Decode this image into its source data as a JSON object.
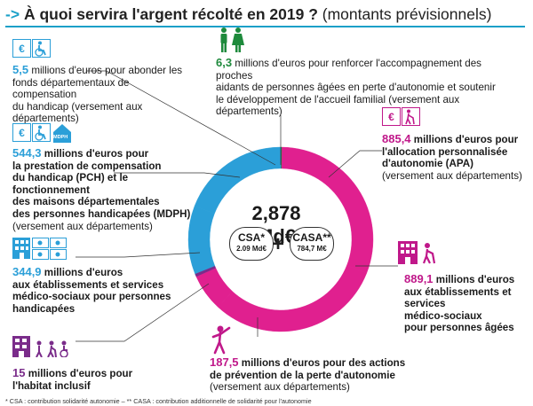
{
  "title": {
    "arrow": "->",
    "main": "À quoi servira l'argent récolté en 2019 ?",
    "sub": "(montants prévisionnels)"
  },
  "center": {
    "total": "2,878 Md€",
    "csa_label": "CSA*",
    "csa_value": "2.09 Md€",
    "plus": "+",
    "casa_label": "CASA**",
    "casa_value": "784,7 M€"
  },
  "items": {
    "fonds": {
      "value": "5,5",
      "text1": "millions d'euros pour abonder les",
      "text2": "fonds départementaux de compensation",
      "text3": "du handicap",
      "note": "(versement aux départements)"
    },
    "proches": {
      "value": "6,3",
      "text1": "millions d'euros pour renforcer l'accompagnement des proches",
      "text2": "aidants de personnes âgées en perte d'autonomie et soutenir",
      "text3": "le développement de l'accueil familial",
      "note": "(versement aux départements)"
    },
    "pch": {
      "value": "544,3",
      "text1": "millions d'euros pour",
      "text2": "la prestation de compensation",
      "text3": "du handicap (PCH) et le fonctionnement",
      "text4": "des maisons départementales",
      "text5": "des personnes handicapées (MDPH)",
      "note": "(versement aux départements)",
      "badge": "MDPH"
    },
    "apa": {
      "value": "885,4",
      "text1": "millions d'euros pour",
      "text2": "l'allocation personnalisée",
      "text3": "d'autonomie (APA)",
      "note": "(versement aux départements)"
    },
    "handicap_etab": {
      "value": "344,9",
      "text1": "millions d'euros",
      "text2": "aux établissements et services",
      "text3": "médico-sociaux pour personnes",
      "text4": "handicapées"
    },
    "agees_etab": {
      "value": "889,1",
      "text1": "millions d'euros",
      "text2": "aux établissements et services",
      "text3": "médico-sociaux",
      "text4": "pour personnes âgées"
    },
    "habitat": {
      "value": "15",
      "text1": "millions d'euros pour",
      "text2": "l'habitat inclusif"
    },
    "prevention": {
      "value": "187,5",
      "text1": "millions d'euros pour des actions",
      "text2": "de prévention de la perte d'autonomie",
      "note": "(versement aux départements)"
    }
  },
  "footnote": "* CSA : contribution solidarité autonomie – ** CASA : contribution additionnelle de solidarité pour l'autonomie",
  "colors": {
    "blue": "#2b9fd8",
    "magenta": "#e0208f",
    "purple": "#7a2c8a",
    "green": "#1e8a3c"
  },
  "chart_data": {
    "type": "pie",
    "title": "À quoi servira l'argent récolté en 2019 ? (montants prévisionnels)",
    "unit": "millions d'euros",
    "total_label": "2,878 Md€",
    "slices": [
      {
        "name": "Accompagnement des proches aidants et accueil familial",
        "value": 6.3,
        "color": "#1e8a3c"
      },
      {
        "name": "APA",
        "value": 885.4,
        "color": "#e0208f"
      },
      {
        "name": "Établissements et services pour personnes âgées",
        "value": 889.1,
        "color": "#e0208f"
      },
      {
        "name": "Prévention de la perte d'autonomie",
        "value": 187.5,
        "color": "#e0208f"
      },
      {
        "name": "Habitat inclusif",
        "value": 15,
        "color": "#7a2c8a"
      },
      {
        "name": "Établissements et services pour personnes handicapées",
        "value": 344.9,
        "color": "#2b9fd8"
      },
      {
        "name": "PCH et MDPH",
        "value": 544.3,
        "color": "#2b9fd8"
      },
      {
        "name": "Fonds départementaux de compensation du handicap",
        "value": 5.5,
        "color": "#2b9fd8"
      }
    ]
  }
}
